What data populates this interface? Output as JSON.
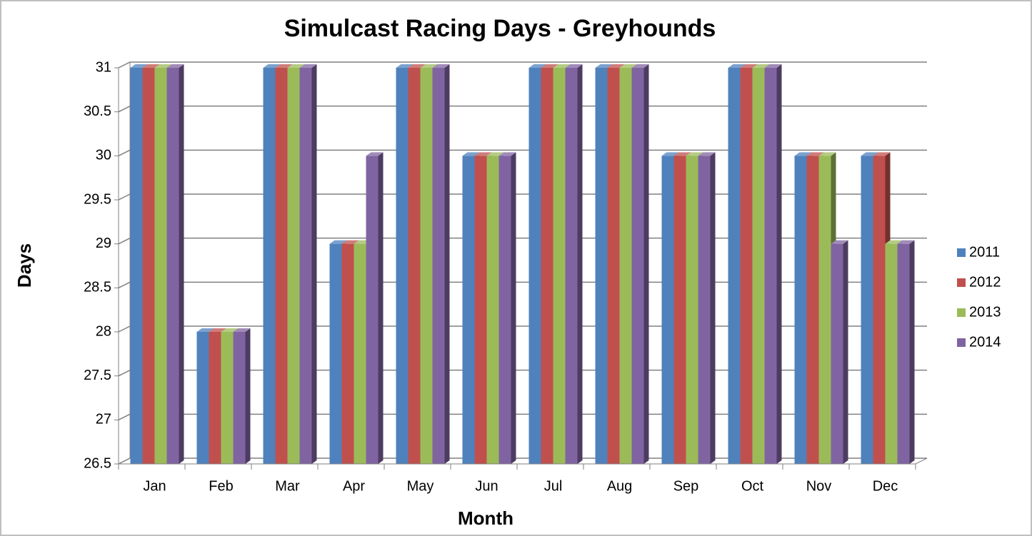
{
  "chart_data": {
    "type": "bar3d",
    "title": "Simulcast Racing Days - Greyhounds",
    "xlabel": "Month",
    "ylabel": "Days",
    "categories": [
      "Jan",
      "Feb",
      "Mar",
      "Apr",
      "May",
      "Jun",
      "Jul",
      "Aug",
      "Sep",
      "Oct",
      "Nov",
      "Dec"
    ],
    "series": [
      {
        "name": "2011",
        "color": "#4f81bd",
        "values": [
          31,
          28,
          31,
          29,
          31,
          30,
          31,
          31,
          30,
          31,
          30,
          30
        ]
      },
      {
        "name": "2012",
        "color": "#c0504d",
        "values": [
          31,
          28,
          31,
          29,
          31,
          30,
          31,
          31,
          30,
          31,
          30,
          30
        ]
      },
      {
        "name": "2013",
        "color": "#9bbb59",
        "values": [
          31,
          28,
          31,
          29,
          31,
          30,
          31,
          31,
          30,
          31,
          30,
          29
        ]
      },
      {
        "name": "2014",
        "color": "#8064a2",
        "values": [
          31,
          28,
          31,
          30,
          31,
          30,
          31,
          31,
          30,
          31,
          29,
          29
        ]
      }
    ],
    "ylim": [
      26.5,
      31
    ],
    "yticks": [
      26.5,
      27,
      27.5,
      28,
      28.5,
      29,
      29.5,
      30,
      30.5,
      31
    ],
    "grid": true,
    "legend": "right"
  }
}
